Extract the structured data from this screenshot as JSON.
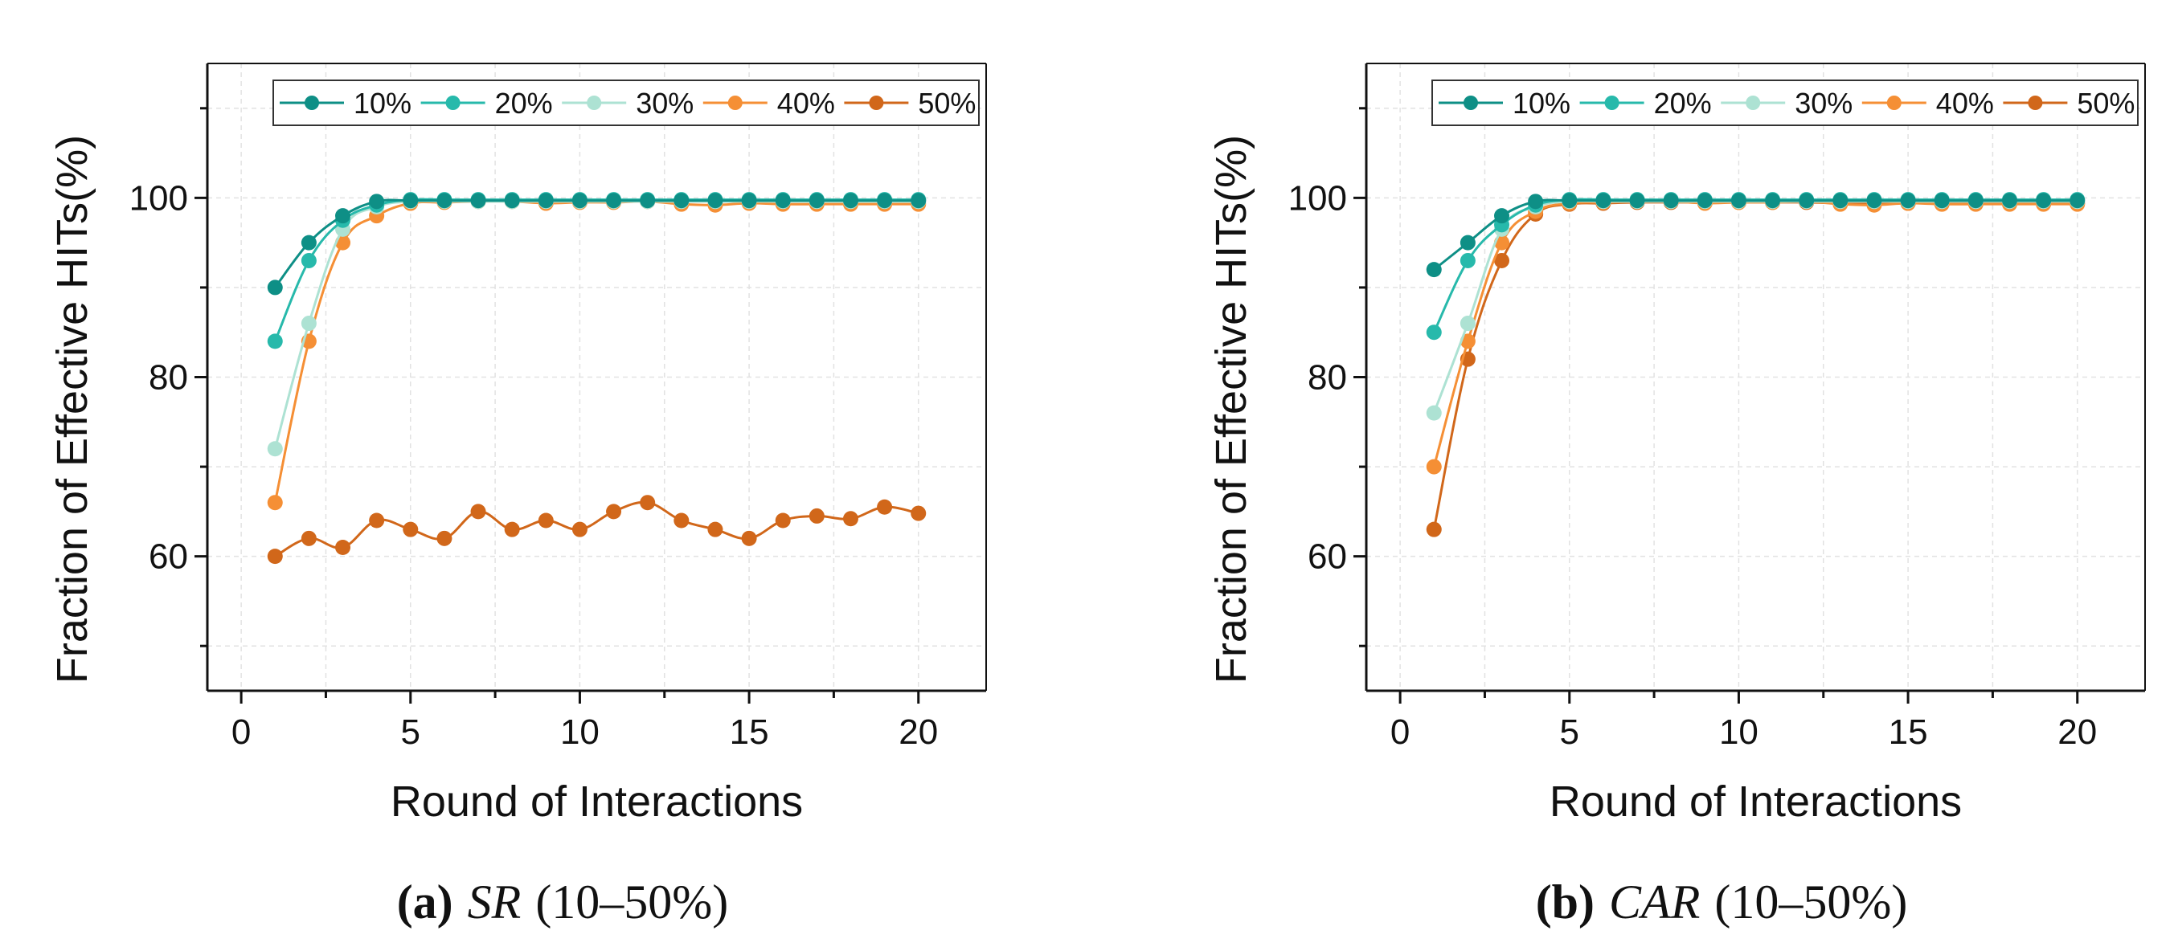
{
  "chart_data": [
    {
      "type": "line",
      "caption": {
        "letter": "a",
        "method": "SR",
        "range": "(10–50%)"
      },
      "xlabel": "Round of Interactions",
      "ylabel": "Fraction of Effective HITs(%)",
      "xlim": [
        -1,
        22
      ],
      "ylim": [
        45,
        115
      ],
      "xticks": [
        0,
        5,
        10,
        15,
        20
      ],
      "yticks": [
        60,
        80,
        100
      ],
      "grid": true,
      "legend": "top",
      "x": [
        1,
        2,
        3,
        4,
        5,
        6,
        7,
        8,
        9,
        10,
        11,
        12,
        13,
        14,
        15,
        16,
        17,
        18,
        19,
        20
      ],
      "series": [
        {
          "name": "10%",
          "color": "#0e8f86",
          "values": [
            90,
            95,
            98,
            99.6,
            99.7,
            99.7,
            99.7,
            99.7,
            99.7,
            99.7,
            99.7,
            99.7,
            99.7,
            99.7,
            99.7,
            99.7,
            99.7,
            99.7,
            99.7,
            99.7
          ]
        },
        {
          "name": "20%",
          "color": "#27b9ab",
          "values": [
            84,
            93,
            97.5,
            99.2,
            99.8,
            99.8,
            99.8,
            99.8,
            99.8,
            99.8,
            99.8,
            99.8,
            99.8,
            99.8,
            99.8,
            99.8,
            99.8,
            99.8,
            99.8,
            99.8
          ]
        },
        {
          "name": "30%",
          "color": "#ade2d3",
          "values": [
            72,
            86,
            96.5,
            99,
            99.6,
            99.6,
            99.6,
            99.6,
            99.6,
            99.6,
            99.6,
            99.6,
            99.6,
            99.6,
            99.6,
            99.6,
            99.6,
            99.6,
            99.6,
            99.6
          ]
        },
        {
          "name": "40%",
          "color": "#f58f35",
          "values": [
            66,
            84,
            95,
            98,
            99.4,
            99.5,
            99.6,
            99.6,
            99.4,
            99.5,
            99.5,
            99.6,
            99.3,
            99.2,
            99.4,
            99.3,
            99.3,
            99.3,
            99.3,
            99.3
          ]
        },
        {
          "name": "50%",
          "color": "#d1671a",
          "values": [
            60,
            62,
            61,
            64,
            63,
            62,
            65,
            63,
            64,
            63,
            65,
            66,
            64,
            63,
            62,
            64,
            64.5,
            64.2,
            65.5,
            64.8
          ]
        }
      ]
    },
    {
      "type": "line",
      "caption": {
        "letter": "b",
        "method": "CAR",
        "range": "(10–50%)"
      },
      "xlabel": "Round of Interactions",
      "ylabel": "Fraction of Effective HITs(%)",
      "xlim": [
        -1,
        22
      ],
      "ylim": [
        45,
        115
      ],
      "xticks": [
        0,
        5,
        10,
        15,
        20
      ],
      "yticks": [
        60,
        80,
        100
      ],
      "grid": true,
      "legend": "top",
      "x": [
        1,
        2,
        3,
        4,
        5,
        6,
        7,
        8,
        9,
        10,
        11,
        12,
        13,
        14,
        15,
        16,
        17,
        18,
        19,
        20
      ],
      "series": [
        {
          "name": "10%",
          "color": "#0e8f86",
          "values": [
            92,
            95,
            98,
            99.6,
            99.7,
            99.7,
            99.7,
            99.7,
            99.7,
            99.7,
            99.7,
            99.7,
            99.7,
            99.7,
            99.7,
            99.7,
            99.7,
            99.7,
            99.7,
            99.7
          ]
        },
        {
          "name": "20%",
          "color": "#27b9ab",
          "values": [
            85,
            93,
            97,
            99.2,
            99.8,
            99.8,
            99.8,
            99.8,
            99.8,
            99.8,
            99.8,
            99.8,
            99.8,
            99.8,
            99.8,
            99.8,
            99.8,
            99.8,
            99.8,
            99.8
          ]
        },
        {
          "name": "30%",
          "color": "#ade2d3",
          "values": [
            76,
            86,
            96.5,
            99,
            99.6,
            99.6,
            99.6,
            99.6,
            99.6,
            99.6,
            99.6,
            99.6,
            99.6,
            99.6,
            99.6,
            99.6,
            99.6,
            99.6,
            99.6,
            99.6
          ]
        },
        {
          "name": "40%",
          "color": "#f58f35",
          "values": [
            70,
            84,
            95,
            98.5,
            99.4,
            99.5,
            99.6,
            99.6,
            99.4,
            99.5,
            99.5,
            99.6,
            99.3,
            99.2,
            99.4,
            99.3,
            99.3,
            99.3,
            99.3,
            99.3
          ]
        },
        {
          "name": "50%",
          "color": "#d1671a",
          "values": [
            63,
            82,
            93,
            98.2,
            99.3,
            99.4,
            99.5,
            99.5,
            99.5,
            99.5,
            99.5,
            99.5,
            99.4,
            99.4,
            99.4,
            99.4,
            99.4,
            99.4,
            99.4,
            99.4
          ]
        }
      ]
    }
  ]
}
